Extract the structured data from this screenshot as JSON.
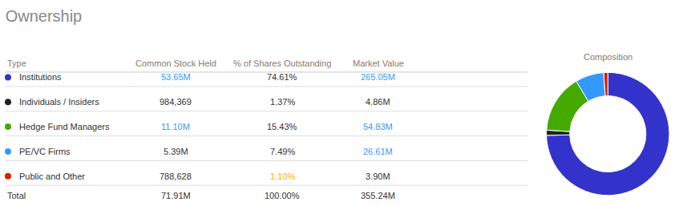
{
  "chart_data": [
    {
      "type": "table",
      "title": "Ownership",
      "columns": [
        "Type",
        "Common Stock Held",
        "% of Shares Outstanding",
        "Market Value",
        "Composition"
      ],
      "series": [
        {
          "name": "Institutions",
          "color": "#3333cc",
          "values": [
            "53.65M",
            "74.61%",
            "265.05M"
          ],
          "colors": [
            "#3399ff",
            "#333333",
            "#3399ff"
          ]
        },
        {
          "name": "Individuals / Insiders",
          "color": "#222222",
          "values": [
            "984,369",
            "1.37%",
            "4.86M"
          ],
          "colors": [
            "#333333",
            "#333333",
            "#333333"
          ]
        },
        {
          "name": "Hedge Fund Managers",
          "color": "#44aa00",
          "values": [
            "11.10M",
            "15.43%",
            "54.83M"
          ],
          "colors": [
            "#3399ff",
            "#333333",
            "#3399ff"
          ]
        },
        {
          "name": "PE/VC Firms",
          "color": "#3399ff",
          "values": [
            "5.39M",
            "7.49%",
            "26.61M"
          ],
          "colors": [
            "#333333",
            "#333333",
            "#3399ff"
          ]
        },
        {
          "name": "Public and Other",
          "color": "#dd2200",
          "values": [
            "788,628",
            "1.10%",
            "3.90M"
          ],
          "colors": [
            "#333333",
            "#ffaa00",
            "#333333"
          ]
        },
        {
          "name": "Total",
          "values": [
            "71.91M",
            "100.00%",
            "355.24M"
          ]
        }
      ]
    },
    {
      "type": "donut",
      "values": [
        74.61,
        1.37,
        15.43,
        7.49,
        1.1
      ],
      "colors": [
        "#3333cc",
        "#222222",
        "#44aa00",
        "#3399ff",
        "#dd2200"
      ]
    }
  ]
}
